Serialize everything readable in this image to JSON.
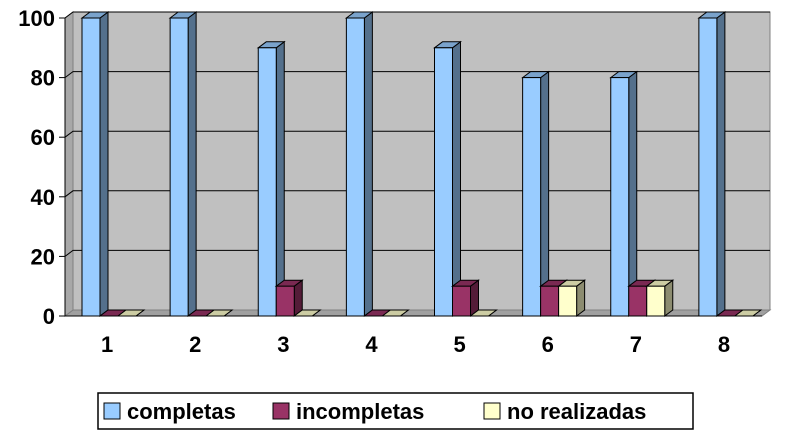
{
  "chart_data": {
    "type": "bar",
    "title": "",
    "xlabel": "",
    "ylabel": "",
    "categories": [
      "1",
      "2",
      "3",
      "4",
      "5",
      "6",
      "7",
      "8"
    ],
    "ylim": [
      0,
      100
    ],
    "yticks": [
      "0",
      "20",
      "40",
      "60",
      "80",
      "100"
    ],
    "grid": true,
    "legend_placement": "bottom",
    "series": [
      {
        "name": "completas",
        "color": "#99CCFF",
        "values": [
          100,
          100,
          90,
          100,
          90,
          80,
          80,
          100
        ]
      },
      {
        "name": "incompletas",
        "color": "#993366",
        "values": [
          0,
          0,
          10,
          0,
          10,
          10,
          10,
          0
        ]
      },
      {
        "name": "no realizadas",
        "color": "#FFFFCC",
        "values": [
          0,
          0,
          0,
          0,
          0,
          10,
          10,
          0
        ]
      }
    ],
    "plot_background": "#C0C0C0"
  }
}
